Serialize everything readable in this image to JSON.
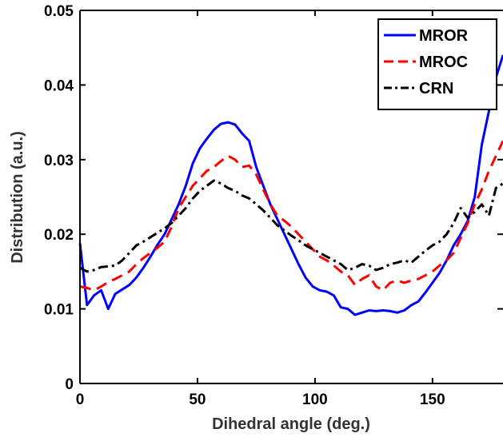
{
  "chart_data": {
    "type": "line",
    "xlabel": "Dihedral angle (deg.)",
    "ylabel": "Distribution (a.u.)",
    "xlim": [
      0,
      180
    ],
    "ylim": [
      0,
      0.05
    ],
    "xticks": [
      "0",
      "50",
      "100",
      "150"
    ],
    "yticks": [
      "0",
      "0.01",
      "0.02",
      "0.03",
      "0.04",
      "0.05"
    ],
    "grid": false,
    "legend_position": "top-right",
    "series": [
      {
        "name": "MROR",
        "color": "#0000ff",
        "style": "solid",
        "x": [
          0,
          3,
          6,
          9,
          12,
          15,
          18,
          21,
          24,
          27,
          30,
          33,
          36,
          39,
          42,
          45,
          48,
          51,
          54,
          57,
          60,
          63,
          66,
          69,
          72,
          75,
          78,
          81,
          84,
          87,
          90,
          93,
          96,
          99,
          102,
          105,
          108,
          111,
          114,
          117,
          120,
          123,
          126,
          129,
          132,
          135,
          138,
          141,
          144,
          147,
          150,
          153,
          156,
          159,
          162,
          165,
          168,
          171,
          174,
          177,
          180
        ],
        "y": [
          0.0188,
          0.0105,
          0.0118,
          0.0125,
          0.01,
          0.012,
          0.0126,
          0.0132,
          0.0142,
          0.0155,
          0.017,
          0.0186,
          0.02,
          0.022,
          0.024,
          0.0265,
          0.0295,
          0.0315,
          0.0328,
          0.034,
          0.0348,
          0.035,
          0.0347,
          0.0335,
          0.0325,
          0.029,
          0.0265,
          0.024,
          0.022,
          0.02,
          0.018,
          0.016,
          0.0142,
          0.013,
          0.0125,
          0.0123,
          0.0118,
          0.0102,
          0.01,
          0.0092,
          0.0095,
          0.0098,
          0.0097,
          0.0098,
          0.0097,
          0.0095,
          0.0098,
          0.0105,
          0.011,
          0.0122,
          0.0135,
          0.0148,
          0.0165,
          0.0185,
          0.02,
          0.0218,
          0.025,
          0.032,
          0.0365,
          0.041,
          0.044
        ]
      },
      {
        "name": "MROC",
        "color": "#ff0000",
        "style": "dashed",
        "x": [
          0,
          3,
          6,
          9,
          12,
          15,
          18,
          21,
          24,
          27,
          30,
          33,
          36,
          39,
          42,
          45,
          48,
          51,
          54,
          57,
          60,
          63,
          66,
          69,
          72,
          75,
          78,
          81,
          84,
          87,
          90,
          93,
          96,
          99,
          102,
          105,
          108,
          111,
          114,
          117,
          120,
          123,
          126,
          129,
          132,
          135,
          138,
          141,
          144,
          147,
          150,
          153,
          156,
          159,
          162,
          165,
          168,
          171,
          174,
          177,
          180
        ],
        "y": [
          0.013,
          0.0128,
          0.0125,
          0.013,
          0.0136,
          0.014,
          0.0145,
          0.015,
          0.016,
          0.0168,
          0.0175,
          0.0182,
          0.019,
          0.021,
          0.0235,
          0.025,
          0.0265,
          0.0275,
          0.0285,
          0.029,
          0.0298,
          0.0305,
          0.03,
          0.029,
          0.0292,
          0.028,
          0.026,
          0.024,
          0.0225,
          0.0218,
          0.021,
          0.02,
          0.019,
          0.018,
          0.017,
          0.0165,
          0.0158,
          0.015,
          0.0145,
          0.0132,
          0.014,
          0.0145,
          0.013,
          0.0125,
          0.0135,
          0.0138,
          0.0135,
          0.0138,
          0.014,
          0.0145,
          0.015,
          0.0158,
          0.0165,
          0.0175,
          0.0195,
          0.0215,
          0.024,
          0.026,
          0.0285,
          0.0305,
          0.0325
        ]
      },
      {
        "name": "CRN",
        "color": "#000000",
        "style": "dashdot",
        "x": [
          0,
          3,
          6,
          9,
          12,
          15,
          18,
          21,
          24,
          27,
          30,
          33,
          36,
          39,
          42,
          45,
          48,
          51,
          54,
          57,
          60,
          63,
          66,
          69,
          72,
          75,
          78,
          81,
          84,
          87,
          90,
          93,
          96,
          99,
          102,
          105,
          108,
          111,
          114,
          117,
          120,
          123,
          126,
          129,
          132,
          135,
          138,
          141,
          144,
          147,
          150,
          153,
          156,
          159,
          162,
          165,
          168,
          171,
          174,
          177,
          180
        ],
        "y": [
          0.0155,
          0.015,
          0.0152,
          0.0156,
          0.0157,
          0.0158,
          0.0165,
          0.0175,
          0.0185,
          0.019,
          0.0196,
          0.0202,
          0.0208,
          0.0215,
          0.0225,
          0.0235,
          0.0248,
          0.0258,
          0.0265,
          0.0272,
          0.0268,
          0.0262,
          0.0258,
          0.0252,
          0.0248,
          0.024,
          0.0232,
          0.0222,
          0.0212,
          0.0205,
          0.0198,
          0.0192,
          0.0185,
          0.018,
          0.0175,
          0.017,
          0.0165,
          0.016,
          0.0152,
          0.0155,
          0.016,
          0.0158,
          0.0152,
          0.0155,
          0.016,
          0.0162,
          0.0165,
          0.0162,
          0.017,
          0.0178,
          0.0185,
          0.019,
          0.02,
          0.0215,
          0.0235,
          0.0222,
          0.023,
          0.024,
          0.0225,
          0.0262,
          0.0268
        ]
      }
    ]
  }
}
